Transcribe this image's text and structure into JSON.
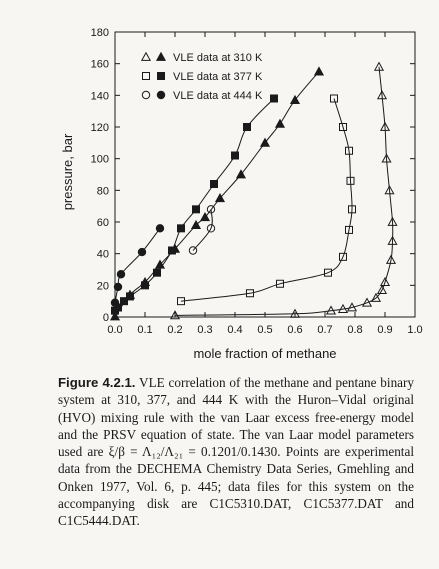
{
  "chart_data": {
    "type": "scatter",
    "xlabel": "mole fraction of methane",
    "ylabel": "pressure, bar",
    "xlim": [
      0.0,
      1.0
    ],
    "ylim": [
      0,
      180
    ],
    "xticks": [
      "0.0",
      "0.1",
      "0.2",
      "0.3",
      "0.4",
      "0.5",
      "0.6",
      "0.7",
      "0.8",
      "0.9",
      "1.0"
    ],
    "yticks": [
      "0",
      "20",
      "40",
      "60",
      "80",
      "100",
      "120",
      "140",
      "160",
      "180"
    ],
    "legend_position": "top-left",
    "series": [
      {
        "name": "VLE data at 310 K",
        "marker": "triangle",
        "liquid": [
          [
            0.0,
            0.3
          ],
          [
            0.05,
            14
          ],
          [
            0.1,
            22
          ],
          [
            0.15,
            33
          ],
          [
            0.2,
            43
          ],
          [
            0.27,
            58
          ],
          [
            0.3,
            63
          ],
          [
            0.35,
            75
          ],
          [
            0.42,
            90
          ],
          [
            0.5,
            110
          ],
          [
            0.55,
            122
          ],
          [
            0.6,
            137
          ],
          [
            0.68,
            155
          ]
        ],
        "vapor": [
          [
            0.2,
            1
          ],
          [
            0.6,
            2
          ],
          [
            0.72,
            4
          ],
          [
            0.76,
            5
          ],
          [
            0.79,
            6
          ],
          [
            0.84,
            9
          ],
          [
            0.87,
            12
          ],
          [
            0.89,
            17
          ],
          [
            0.9,
            22
          ],
          [
            0.92,
            36
          ],
          [
            0.925,
            48
          ],
          [
            0.925,
            60
          ],
          [
            0.915,
            80
          ],
          [
            0.905,
            100
          ],
          [
            0.9,
            120
          ],
          [
            0.89,
            140
          ],
          [
            0.88,
            158
          ]
        ]
      },
      {
        "name": "VLE data at 377 K",
        "marker": "square",
        "liquid": [
          [
            0.0,
            4
          ],
          [
            0.01,
            6
          ],
          [
            0.03,
            10
          ],
          [
            0.05,
            13
          ],
          [
            0.1,
            20
          ],
          [
            0.14,
            28
          ],
          [
            0.19,
            42
          ],
          [
            0.22,
            56
          ],
          [
            0.27,
            68
          ],
          [
            0.33,
            84
          ],
          [
            0.4,
            102
          ],
          [
            0.44,
            120
          ],
          [
            0.53,
            138
          ]
        ],
        "vapor": [
          [
            0.22,
            10
          ],
          [
            0.45,
            15
          ],
          [
            0.55,
            21
          ],
          [
            0.71,
            28
          ],
          [
            0.76,
            38
          ],
          [
            0.78,
            55
          ],
          [
            0.79,
            68
          ],
          [
            0.785,
            86
          ],
          [
            0.78,
            105
          ],
          [
            0.76,
            120
          ],
          [
            0.73,
            138
          ]
        ]
      },
      {
        "name": "VLE data at 444 K",
        "marker": "circle",
        "liquid": [
          [
            0.0,
            9
          ],
          [
            0.01,
            19
          ],
          [
            0.02,
            27
          ],
          [
            0.09,
            41
          ],
          [
            0.15,
            56
          ]
        ],
        "vapor": [
          [
            0.26,
            42
          ],
          [
            0.32,
            56
          ],
          [
            0.32,
            68
          ]
        ]
      }
    ]
  },
  "caption": {
    "figure_label": "Figure 4.2.1.",
    "text": " VLE correlation of the methane and pentane binary system at 310, 377, and 444 K with the Huron–Vidal original (HVO) mixing rule with the van Laar excess free-energy model and the PRSV equation of state. The van Laar model parameters used are ξ/β = Λ₁₂/Λ₂₁ = 0.1201/0.1430. Points are experimental data from the DECHEMA Chemistry Data Series, Gmehling and Onken 1977, Vol. 6, p. 445; data files for this system on the accompanying disk are C1C5310.DAT, C1C5377.DAT and C1C5444.DAT."
  }
}
